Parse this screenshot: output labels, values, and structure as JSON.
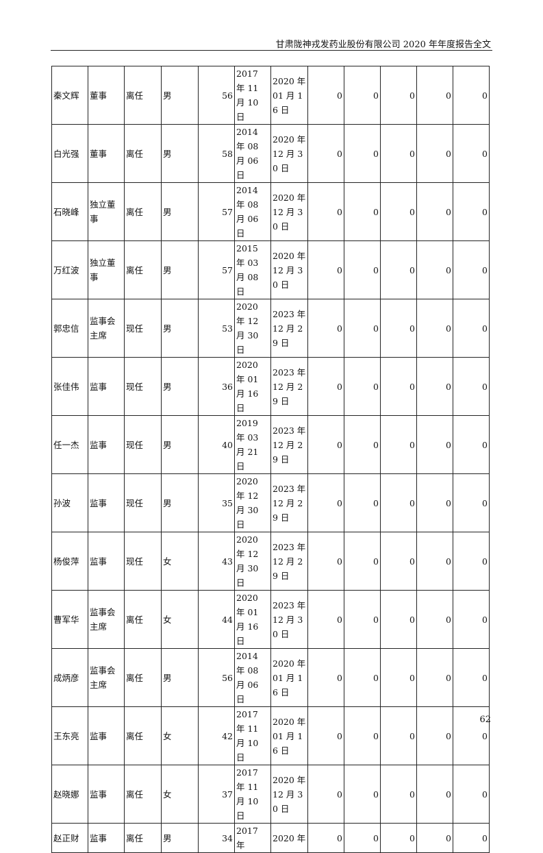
{
  "header": "甘肃陇神戎发药业股份有限公司 2020 年年度报告全文",
  "page_number": "62",
  "rows": [
    [
      "秦文辉",
      "董事",
      "离任",
      "男",
      "56",
      "2017 年 11 月 10 日",
      "2020 年 01 月 16 日",
      "0",
      "0",
      "0",
      "0",
      "0"
    ],
    [
      "白光强",
      "董事",
      "离任",
      "男",
      "58",
      "2014 年 08 月 06 日",
      "2020 年 12 月 30 日",
      "0",
      "0",
      "0",
      "0",
      "0"
    ],
    [
      "石晓峰",
      "独立董事",
      "离任",
      "男",
      "57",
      "2014 年 08 月 06 日",
      "2020 年 12 月 30 日",
      "0",
      "0",
      "0",
      "0",
      "0"
    ],
    [
      "万红波",
      "独立董事",
      "离任",
      "男",
      "57",
      "2015 年 03 月 08 日",
      "2020 年 12 月 30 日",
      "0",
      "0",
      "0",
      "0",
      "0"
    ],
    [
      "郭忠信",
      "监事会主席",
      "现任",
      "男",
      "53",
      "2020 年 12 月 30 日",
      "2023 年 12 月 29 日",
      "0",
      "0",
      "0",
      "0",
      "0"
    ],
    [
      "张佳伟",
      "监事",
      "现任",
      "男",
      "36",
      "2020 年 01 月 16 日",
      "2023 年 12 月 29 日",
      "0",
      "0",
      "0",
      "0",
      "0"
    ],
    [
      "任一杰",
      "监事",
      "现任",
      "男",
      "40",
      "2019 年 03 月 21 日",
      "2023 年 12 月 29 日",
      "0",
      "0",
      "0",
      "0",
      "0"
    ],
    [
      "孙波",
      "监事",
      "现任",
      "男",
      "35",
      "2020 年 12 月 30 日",
      "2023 年 12 月 29 日",
      "0",
      "0",
      "0",
      "0",
      "0"
    ],
    [
      "杨俊萍",
      "监事",
      "现任",
      "女",
      "43",
      "2020 年 12 月 30 日",
      "2023 年 12 月 29 日",
      "0",
      "0",
      "0",
      "0",
      "0"
    ],
    [
      "曹军华",
      "监事会主席",
      "离任",
      "女",
      "44",
      "2020 年 01 月 16 日",
      "2023 年 12 月 30 日",
      "0",
      "0",
      "0",
      "0",
      "0"
    ],
    [
      "成炳彦",
      "监事会主席",
      "离任",
      "男",
      "56",
      "2014 年 08 月 06 日",
      "2020 年 01 月 16 日",
      "0",
      "0",
      "0",
      "0",
      "0"
    ],
    [
      "王东亮",
      "监事",
      "离任",
      "女",
      "42",
      "2017 年 11 月 10 日",
      "2020 年 01 月 16 日",
      "0",
      "0",
      "0",
      "0",
      "0"
    ],
    [
      "赵晓娜",
      "监事",
      "离任",
      "女",
      "37",
      "2017 年 11 月 10 日",
      "2020 年 12 月 30 日",
      "0",
      "0",
      "0",
      "0",
      "0"
    ],
    [
      "赵正财",
      "监事",
      "离任",
      "男",
      "34",
      "2017 年",
      "2020 年",
      "0",
      "0",
      "0",
      "0",
      "0"
    ]
  ]
}
